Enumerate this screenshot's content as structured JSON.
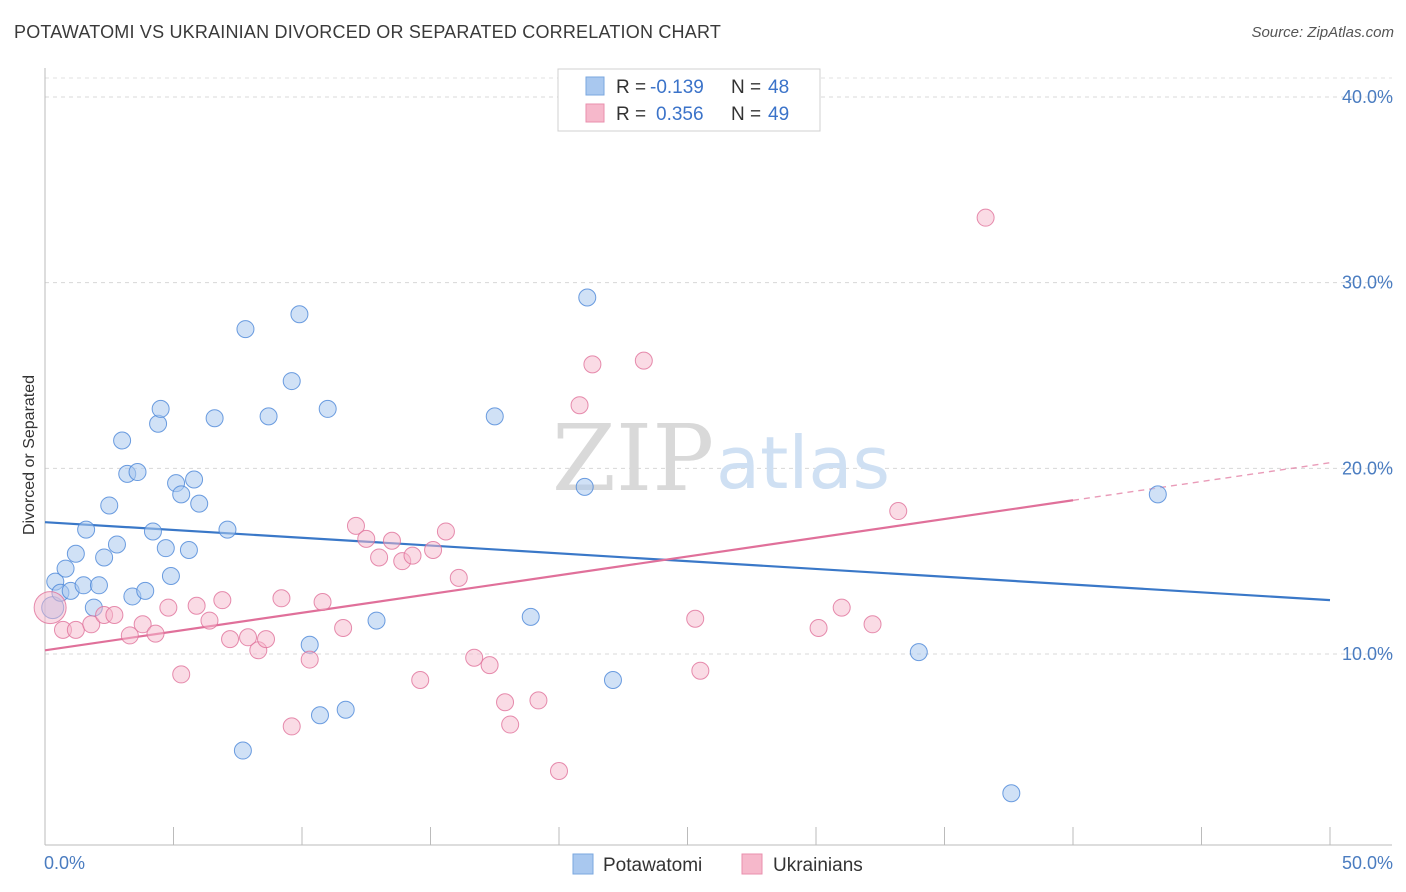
{
  "header": {
    "title": "POTAWATOMI VS UKRAINIAN DIVORCED OR SEPARATED CORRELATION CHART",
    "source": "Source: ZipAtlas.com"
  },
  "watermark": {
    "zip": "ZIP",
    "atlas": "atlas"
  },
  "legend": {
    "rows": [
      {
        "r_label": "R = ",
        "r_value": "-0.139",
        "n_label": "N = ",
        "n_value": "48",
        "color": "#a9c8ef"
      },
      {
        "r_label": "R = ",
        "r_value": "0.356",
        "n_label": "N = ",
        "n_value": "49",
        "color": "#f6b8cb"
      }
    ]
  },
  "bottom_legend": [
    {
      "label": "Potawatomi",
      "color": "#a9c8ef"
    },
    {
      "label": "Ukrainians",
      "color": "#f6b8cb"
    }
  ],
  "chart_data": {
    "type": "scatter",
    "title": "POTAWATOMI VS UKRAINIAN DIVORCED OR SEPARATED CORRELATION CHART",
    "ylabel": "Divorced or Separated",
    "xlabel": "",
    "xlim": [
      0,
      50
    ],
    "ylim": [
      0,
      40
    ],
    "x_tick_labels": [
      "0.0%",
      "50.0%"
    ],
    "y_ticks": [
      {
        "value": 10,
        "label": "10.0%"
      },
      {
        "value": 20,
        "label": "20.0%"
      },
      {
        "value": 30,
        "label": "30.0%"
      },
      {
        "value": 40,
        "label": "40.0%"
      }
    ],
    "grid": "horizontal dashed",
    "series": [
      {
        "name": "Potawatomi",
        "color": "#4a86d8",
        "fill": "#a9c8ef",
        "r": -0.139,
        "n": 48,
        "trend": {
          "x0": 0,
          "y0": 17.1,
          "x1": 50,
          "y1": 12.9,
          "color": "#3a78c8"
        },
        "points": [
          [
            0.3,
            12.5
          ],
          [
            0.4,
            13.9
          ],
          [
            0.6,
            13.3
          ],
          [
            0.8,
            14.6
          ],
          [
            1.0,
            13.4
          ],
          [
            1.2,
            15.4
          ],
          [
            1.5,
            13.7
          ],
          [
            1.6,
            16.7
          ],
          [
            1.9,
            12.5
          ],
          [
            2.1,
            13.7
          ],
          [
            2.3,
            15.2
          ],
          [
            2.5,
            18.0
          ],
          [
            2.8,
            15.9
          ],
          [
            3.0,
            21.5
          ],
          [
            3.2,
            19.7
          ],
          [
            3.4,
            13.1
          ],
          [
            3.6,
            19.8
          ],
          [
            3.9,
            13.4
          ],
          [
            4.2,
            16.6
          ],
          [
            4.4,
            22.4
          ],
          [
            4.5,
            23.2
          ],
          [
            4.7,
            15.7
          ],
          [
            4.9,
            14.2
          ],
          [
            5.1,
            19.2
          ],
          [
            5.3,
            18.6
          ],
          [
            5.6,
            15.6
          ],
          [
            5.8,
            19.4
          ],
          [
            6.0,
            18.1
          ],
          [
            6.6,
            22.7
          ],
          [
            7.1,
            16.7
          ],
          [
            7.7,
            4.8
          ],
          [
            7.8,
            27.5
          ],
          [
            8.7,
            22.8
          ],
          [
            9.6,
            24.7
          ],
          [
            9.9,
            28.3
          ],
          [
            10.3,
            10.5
          ],
          [
            10.7,
            6.7
          ],
          [
            11.0,
            23.2
          ],
          [
            11.7,
            7.0
          ],
          [
            12.9,
            11.8
          ],
          [
            17.5,
            22.8
          ],
          [
            18.9,
            12.0
          ],
          [
            21.0,
            19.0
          ],
          [
            21.1,
            29.2
          ],
          [
            22.1,
            8.6
          ],
          [
            34.0,
            10.1
          ],
          [
            37.6,
            2.5
          ],
          [
            43.3,
            18.6
          ]
        ]
      },
      {
        "name": "Ukrainians",
        "color": "#e0709a",
        "fill": "#f6b8cb",
        "r": 0.356,
        "n": 49,
        "trend": {
          "x0": 0,
          "y0": 10.2,
          "x1": 50,
          "y1": 20.3,
          "solid_until": 40.0,
          "color": "#e0709a"
        },
        "points": [
          [
            0.2,
            12.5
          ],
          [
            0.7,
            11.3
          ],
          [
            1.2,
            11.3
          ],
          [
            1.8,
            11.6
          ],
          [
            2.3,
            12.1
          ],
          [
            2.7,
            12.1
          ],
          [
            3.3,
            11.0
          ],
          [
            3.8,
            11.6
          ],
          [
            4.3,
            11.1
          ],
          [
            4.8,
            12.5
          ],
          [
            5.3,
            8.9
          ],
          [
            5.9,
            12.6
          ],
          [
            6.4,
            11.8
          ],
          [
            6.9,
            12.9
          ],
          [
            7.2,
            10.8
          ],
          [
            7.9,
            10.9
          ],
          [
            8.3,
            10.2
          ],
          [
            8.6,
            10.8
          ],
          [
            9.2,
            13.0
          ],
          [
            9.6,
            6.1
          ],
          [
            10.3,
            9.7
          ],
          [
            10.8,
            12.8
          ],
          [
            11.6,
            11.4
          ],
          [
            12.1,
            16.9
          ],
          [
            12.5,
            16.2
          ],
          [
            13.0,
            15.2
          ],
          [
            13.5,
            16.1
          ],
          [
            13.9,
            15.0
          ],
          [
            14.3,
            15.3
          ],
          [
            14.6,
            8.6
          ],
          [
            15.1,
            15.6
          ],
          [
            15.6,
            16.6
          ],
          [
            16.1,
            14.1
          ],
          [
            16.7,
            9.8
          ],
          [
            17.3,
            9.4
          ],
          [
            17.9,
            7.4
          ],
          [
            18.1,
            6.2
          ],
          [
            19.2,
            7.5
          ],
          [
            20.0,
            3.7
          ],
          [
            20.8,
            23.4
          ],
          [
            21.3,
            25.6
          ],
          [
            23.3,
            25.8
          ],
          [
            25.3,
            11.9
          ],
          [
            25.5,
            9.1
          ],
          [
            30.1,
            11.4
          ],
          [
            31.0,
            12.5
          ],
          [
            32.2,
            11.6
          ],
          [
            33.2,
            17.7
          ],
          [
            36.6,
            33.5
          ]
        ]
      }
    ]
  }
}
